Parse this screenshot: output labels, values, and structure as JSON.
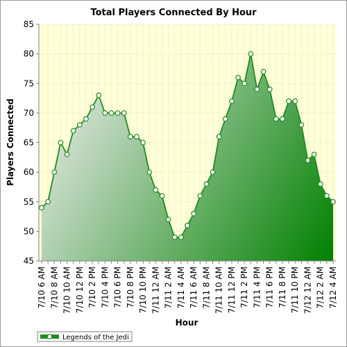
{
  "chart_data": {
    "type": "area",
    "title": "Total Players Connected By Hour",
    "xlabel": "Hour",
    "ylabel": "Players Connected",
    "ylim": [
      45,
      85
    ],
    "yticks": [
      45,
      50,
      55,
      60,
      65,
      70,
      75,
      80,
      85
    ],
    "xtick_labels": [
      "7/10 6 AM",
      "7/10 8 AM",
      "7/10 10 AM",
      "7/10 12 PM",
      "7/10 2 PM",
      "7/10 4 PM",
      "7/10 6 PM",
      "7/10 8 PM",
      "7/10 10 PM",
      "7/11 12 AM",
      "7/11 2 AM",
      "7/11 4 AM",
      "7/11 6 AM",
      "7/11 8 AM",
      "7/11 10 AM",
      "7/11 12 PM",
      "7/11 2 PM",
      "7/11 4 PM",
      "7/11 6 PM",
      "7/11 8 PM",
      "7/11 10 PM",
      "7/12 12 AM",
      "7/12 2 AM",
      "7/12 4 AM"
    ],
    "grid": true,
    "legend_position": "bottom-left",
    "series": [
      {
        "name": "Legends of the Jedi",
        "color": "#1e8c1e",
        "values": [
          54,
          55,
          60,
          65,
          63,
          67,
          68,
          69,
          71,
          73,
          70,
          70,
          70,
          70,
          66,
          66,
          65,
          60,
          57,
          56,
          52,
          49,
          49,
          51,
          53,
          56,
          58,
          60,
          66,
          69,
          72,
          76,
          75,
          80,
          74,
          77,
          74,
          69,
          69,
          72,
          72,
          68,
          62,
          63,
          58,
          56,
          55
        ]
      }
    ]
  },
  "colors": {
    "plot_background": "#ffffd8",
    "gradient_light": "#ececec",
    "gradient_dark": "#008000",
    "line": "#1e8c1e"
  }
}
